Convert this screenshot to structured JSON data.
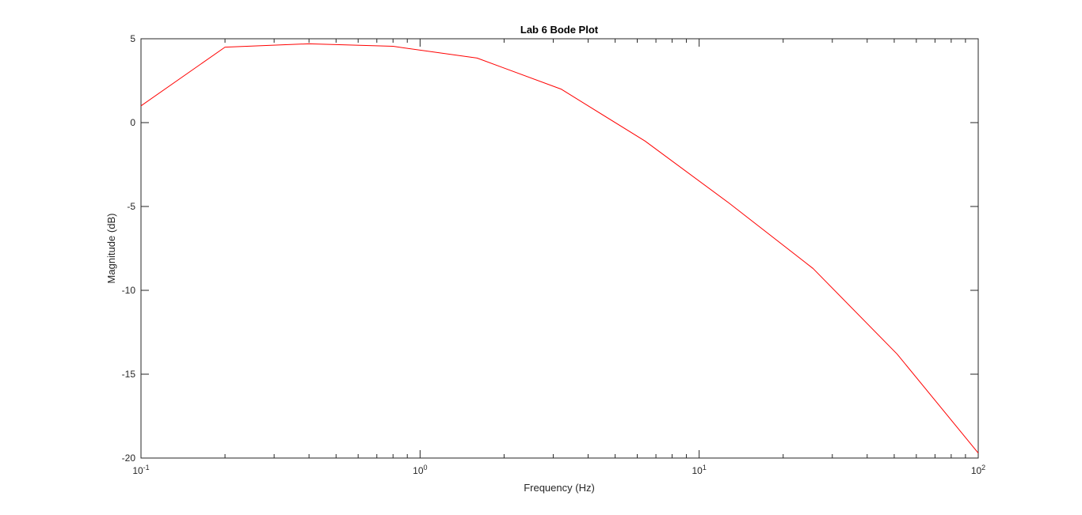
{
  "chart_data": {
    "type": "line",
    "title": "Lab 6 Bode Plot",
    "xlabel": "Frequency (Hz)",
    "ylabel": "Magnitude (dB)",
    "xscale": "log",
    "xlim": [
      0.1,
      100
    ],
    "ylim": [
      -20,
      5
    ],
    "grid": false,
    "x_ticks": [
      {
        "base": "10",
        "exp": "-1",
        "value": 0.1
      },
      {
        "base": "10",
        "exp": "0",
        "value": 1
      },
      {
        "base": "10",
        "exp": "1",
        "value": 10
      },
      {
        "base": "10",
        "exp": "2",
        "value": 100
      }
    ],
    "y_ticks": [
      {
        "label": "5",
        "value": 5
      },
      {
        "label": "0",
        "value": 0
      },
      {
        "label": "-5",
        "value": -5
      },
      {
        "label": "-10",
        "value": -10
      },
      {
        "label": "-15",
        "value": -15
      },
      {
        "label": "-20",
        "value": -20
      }
    ],
    "series": [
      {
        "color": "#ff0000",
        "x": [
          0.1,
          0.2,
          0.4,
          0.8,
          1.6,
          3.2,
          6.4,
          12.8,
          25.6,
          51.2,
          100
        ],
        "y": [
          1.0,
          4.5,
          4.7,
          4.55,
          3.85,
          2.0,
          -1.1,
          -4.8,
          -8.7,
          -13.8,
          -19.7
        ]
      }
    ],
    "axis_color": "#262626"
  }
}
